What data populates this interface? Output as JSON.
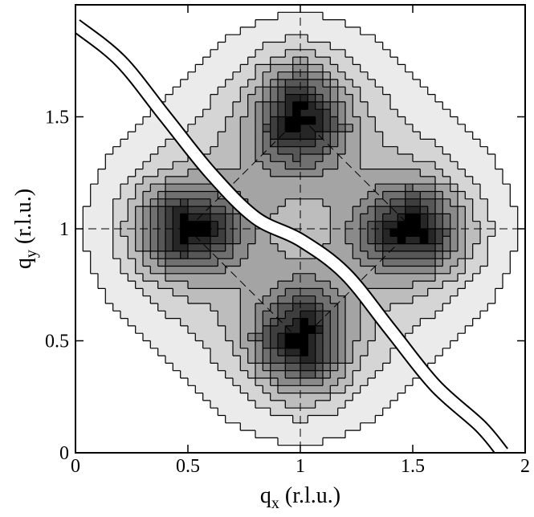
{
  "chart_data": {
    "type": "heatmap",
    "title": "",
    "xlabel": {
      "main": "q",
      "sub": "x",
      "rest": " (r.l.u.)"
    },
    "ylabel": {
      "main": "q",
      "sub": "y",
      "rest": " (r.l.u.)"
    },
    "xlim": [
      0,
      2
    ],
    "ylim": [
      0,
      2
    ],
    "x_ticks": [
      0,
      0.5,
      1,
      1.5,
      2
    ],
    "x_tick_labels": [
      "0",
      "0.5",
      "1",
      "1.5",
      "2"
    ],
    "y_ticks": [
      0,
      0.5,
      1,
      1.5
    ],
    "y_tick_labels": [
      "0",
      "0.5",
      "1",
      "1.5"
    ],
    "grid": false,
    "reference_lines": {
      "vertical_x": 1,
      "horizontal_y": 1,
      "diagonals": [
        {
          "from": [
            0.5,
            1
          ],
          "to": [
            1,
            1.5
          ]
        },
        {
          "from": [
            1,
            1.5
          ],
          "to": [
            1.5,
            1
          ]
        },
        {
          "from": [
            1.5,
            1
          ],
          "to": [
            1,
            0.5
          ]
        },
        {
          "from": [
            1,
            0.5
          ],
          "to": [
            0.5,
            1
          ]
        }
      ]
    },
    "peaks": [
      {
        "x": 0.5,
        "y": 1.0
      },
      {
        "x": 1.0,
        "y": 1.5
      },
      {
        "x": 1.5,
        "y": 1.0
      },
      {
        "x": 1.0,
        "y": 0.5
      }
    ],
    "contour_fill_colors": [
      "#ffffff",
      "#ebebeb",
      "#d5d5d5",
      "#bdbdbd",
      "#a4a4a4",
      "#8a8a8a",
      "#707070",
      "#575757",
      "#3e3e3e",
      "#262626",
      "#000000"
    ],
    "contour_line_color": "#000000",
    "diagonal_band": {
      "color": "#ffffff",
      "outline": "#000000",
      "path_points": [
        [
          0.0,
          1.91
        ],
        [
          0.2,
          1.75
        ],
        [
          0.4,
          1.5
        ],
        [
          0.6,
          1.25
        ],
        [
          0.8,
          1.05
        ],
        [
          1.0,
          0.95
        ],
        [
          1.2,
          0.8
        ],
        [
          1.4,
          0.55
        ],
        [
          1.6,
          0.3
        ],
        [
          1.8,
          0.12
        ],
        [
          1.9,
          0.0
        ]
      ]
    }
  }
}
